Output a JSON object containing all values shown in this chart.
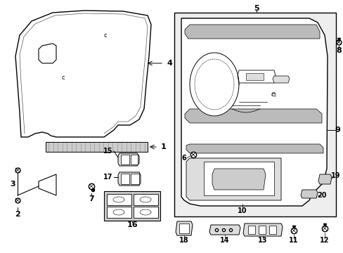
{
  "bg": "#ffffff",
  "lc": "#000000",
  "fig_w": 4.89,
  "fig_h": 3.6,
  "dpi": 100,
  "gray_bg": "#d8d8d8",
  "light_gray": "#e8e8e8"
}
